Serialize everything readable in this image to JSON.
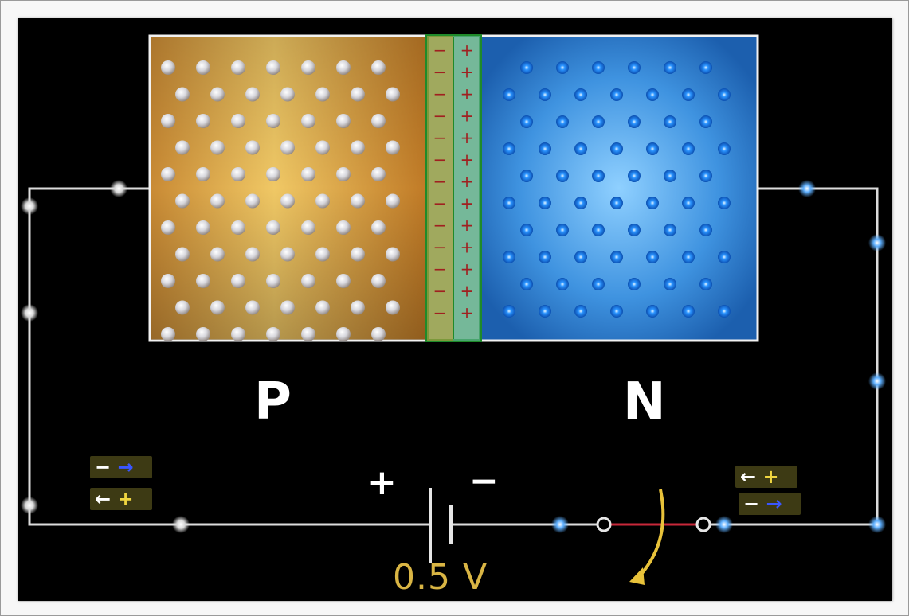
{
  "diagram": {
    "regions": {
      "p_label": "P",
      "n_label": "N"
    },
    "battery": {
      "positive_sign": "+",
      "negative_sign": "−",
      "voltage": "0.5 V"
    },
    "depletion_signs": {
      "negative": "−",
      "positive": "+"
    },
    "badges": {
      "left_top": {
        "a": "−",
        "b": "→"
      },
      "left_bottom": {
        "a": "←",
        "b": "+"
      },
      "right_top": {
        "a": "←",
        "b": "+"
      },
      "right_bottom": {
        "a": "−",
        "b": "→"
      }
    },
    "colors": {
      "p_region": "#d9a63c",
      "n_region": "#2e7fd0",
      "depletion_fill": "#6fae78",
      "depletion_border": "#1f8a2a",
      "hole": "#e4e4e4",
      "electron": "#2fa0ff",
      "wire": "#dcdcdc",
      "switch_bar": "#c8283a",
      "switch_arrow": "#e8c23a",
      "voltage_text": "#d9b544"
    }
  }
}
